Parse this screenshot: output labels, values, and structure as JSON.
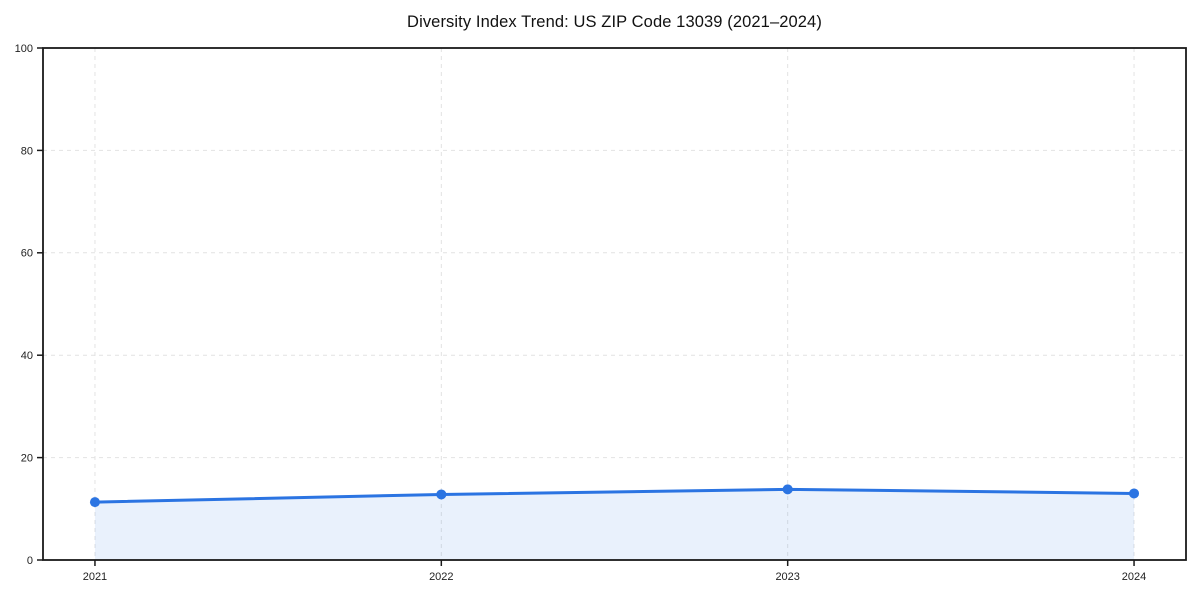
{
  "chart_data": {
    "type": "line",
    "title": "Diversity Index Trend: US ZIP Code 13039 (2021–2024)",
    "x": [
      2021,
      2022,
      2023,
      2024
    ],
    "values": [
      11.3,
      12.8,
      13.8,
      13.0
    ],
    "xlabel": "",
    "ylabel": "",
    "ylim": [
      0,
      100
    ],
    "yticks": [
      0,
      20,
      40,
      60,
      80,
      100
    ],
    "x_margin_frac": 0.05,
    "grid": {
      "show": true,
      "style": "dashed",
      "color": "#e2e2e2"
    },
    "legend": {
      "show": false
    },
    "line_color": "#2b74e2",
    "marker_color": "#2b74e2",
    "fill_color": "#2b74e2",
    "fill_opacity": 0.1,
    "axis_color": "#1a1a1a",
    "tick_text_color": "#222222",
    "plot_bg": "#ffffff"
  }
}
